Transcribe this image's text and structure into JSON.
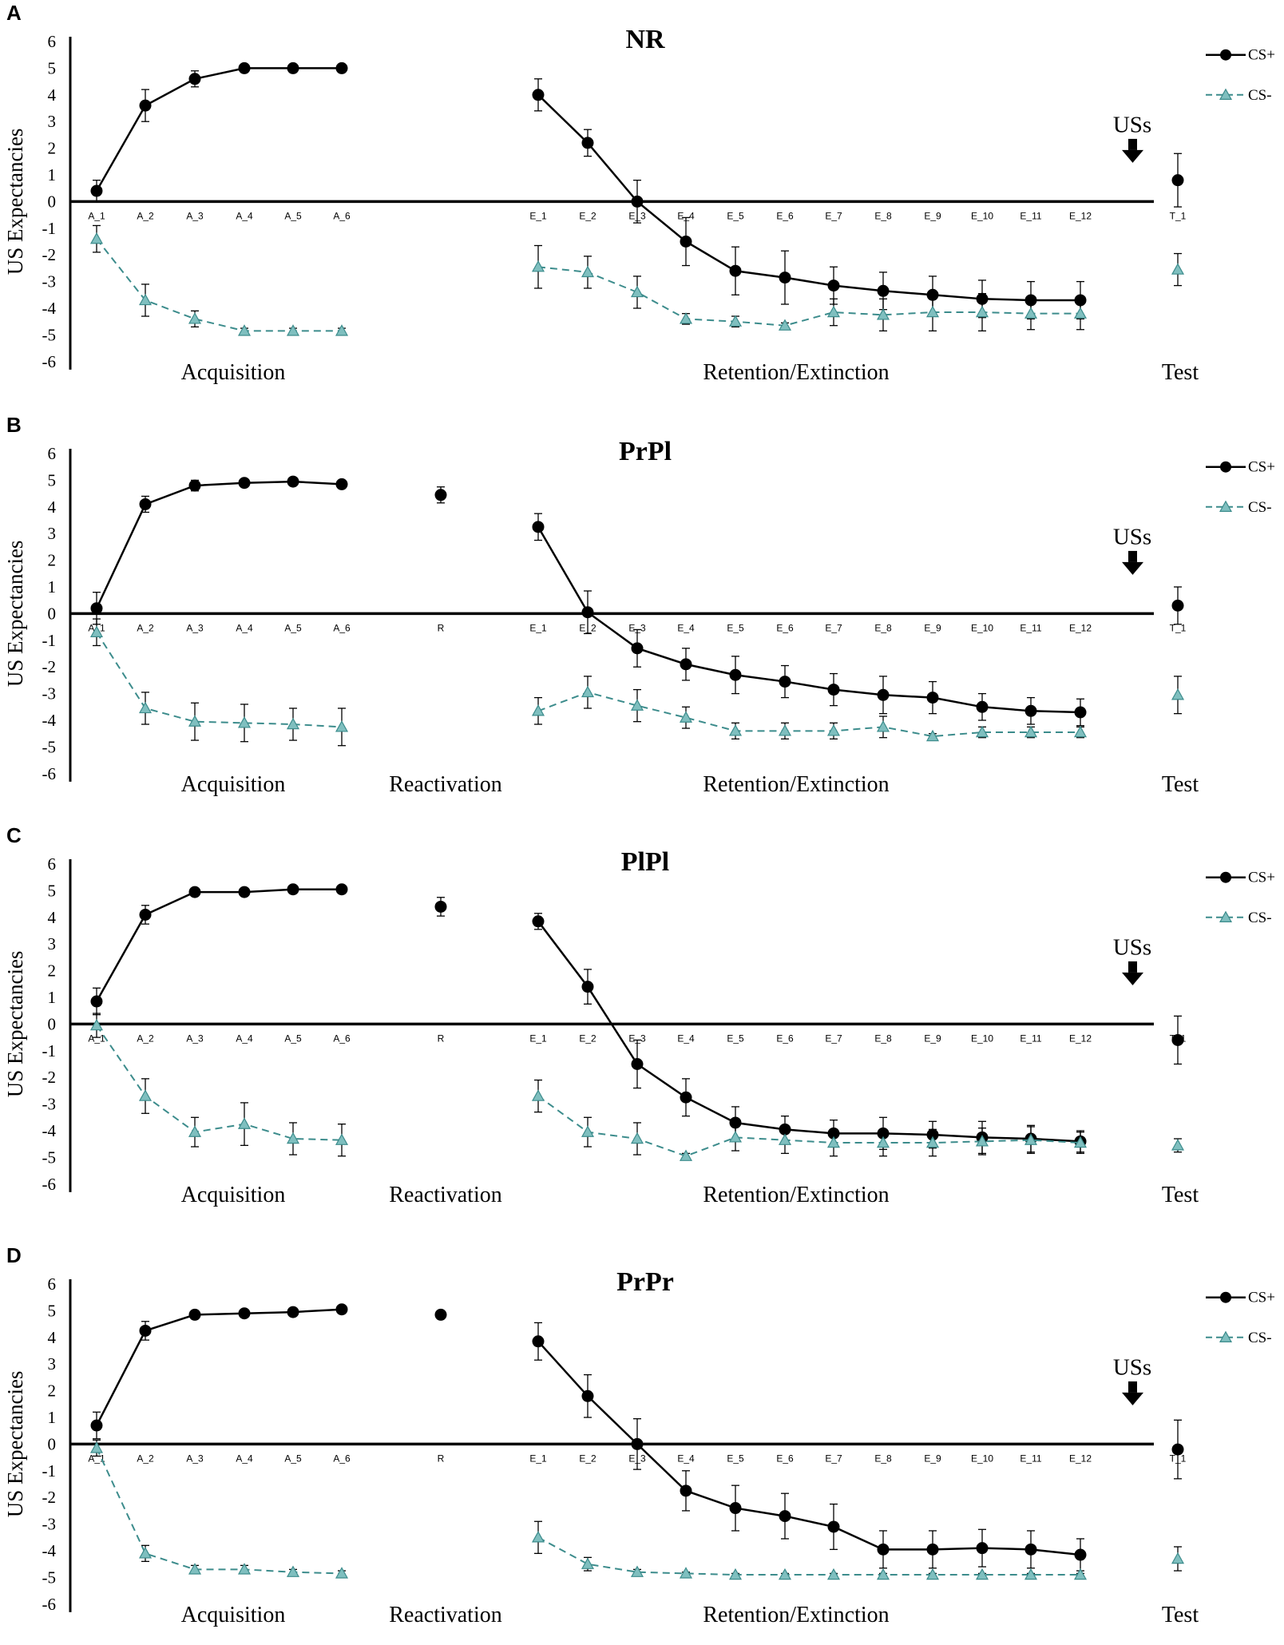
{
  "colors": {
    "csplus": "#000000",
    "csminus_line": "#3c8c8c",
    "csminus_fill": "#7fbfbf",
    "axis": "#000000"
  },
  "figure": {
    "y_axis_label": "US Expectancies",
    "y_ticks": [
      "6",
      "5",
      "4",
      "3",
      "2",
      "1",
      "0",
      "-1",
      "-2",
      "-3",
      "-4",
      "-5",
      "-6"
    ],
    "legend": {
      "csplus": "CS+",
      "csminus": "CS-"
    },
    "annotation": "USs",
    "phase_labels": {
      "acquisition": "Acquisition",
      "reactivation": "Reactivation",
      "retention": "Retention/Extinction",
      "test": "Test"
    }
  },
  "chart_data": [
    {
      "type": "line",
      "panel": "A",
      "title": "NR",
      "ylabel": "US Expectancies",
      "ylim": [
        -6,
        6
      ],
      "has_reactivation": false,
      "categories": [
        "A_1",
        "A_2",
        "A_3",
        "A_4",
        "A_5",
        "A_6",
        "E_1",
        "E_2",
        "E_3",
        "E_4",
        "E_5",
        "E_6",
        "E_7",
        "E_8",
        "E_9",
        "E_10",
        "E_11",
        "E_12",
        "T_1"
      ],
      "series": [
        {
          "name": "CS+",
          "acquisition": [
            0.4,
            3.6,
            4.6,
            5.0,
            5.0,
            5.0
          ],
          "acquisition_err": [
            0.4,
            0.6,
            0.3,
            0,
            0,
            0
          ],
          "extinction": [
            4.0,
            2.2,
            0.0,
            -1.5,
            -2.6,
            -2.85,
            -3.15,
            -3.35,
            -3.5,
            -3.65,
            -3.7,
            -3.7
          ],
          "extinction_err": [
            0.6,
            0.5,
            0.8,
            0.9,
            0.9,
            1.0,
            0.7,
            0.7,
            0.7,
            0.7,
            0.7,
            0.7
          ],
          "test": 0.8,
          "test_err": 1.0
        },
        {
          "name": "CS-",
          "acquisition": [
            -1.4,
            -3.7,
            -4.4,
            -4.85,
            -4.85,
            -4.85
          ],
          "acquisition_err": [
            0.5,
            0.6,
            0.3,
            0.1,
            0.1,
            0.1
          ],
          "extinction": [
            -2.45,
            -2.65,
            -3.4,
            -4.4,
            -4.5,
            -4.65,
            -4.15,
            -4.25,
            -4.15,
            -4.15,
            -4.2,
            -4.2
          ],
          "extinction_err": [
            0.8,
            0.6,
            0.6,
            0.2,
            0.2,
            0.1,
            0.5,
            0.6,
            0.7,
            0.7,
            0.6,
            0.6
          ],
          "test": -2.55,
          "test_err": 0.6
        }
      ]
    },
    {
      "type": "line",
      "panel": "B",
      "title": "PrPl",
      "ylabel": "US Expectancies",
      "ylim": [
        -6,
        6
      ],
      "has_reactivation": true,
      "categories": [
        "A_1",
        "A_2",
        "A_3",
        "A_4",
        "A_5",
        "A_6",
        "R",
        "E_1",
        "E_2",
        "E_3",
        "E_4",
        "E_5",
        "E_6",
        "E_7",
        "E_8",
        "E_9",
        "E_10",
        "E_11",
        "E_12",
        "T_1"
      ],
      "series": [
        {
          "name": "CS+",
          "acquisition": [
            0.2,
            4.1,
            4.8,
            4.9,
            4.95,
            4.85
          ],
          "acquisition_err": [
            0.6,
            0.3,
            0.2,
            0.05,
            0.05,
            0.05
          ],
          "reactivation": 4.45,
          "reactivation_err": 0.3,
          "extinction": [
            3.25,
            0.05,
            -1.3,
            -1.9,
            -2.3,
            -2.55,
            -2.85,
            -3.05,
            -3.15,
            -3.5,
            -3.65,
            -3.7
          ],
          "extinction_err": [
            0.5,
            0.8,
            0.7,
            0.6,
            0.7,
            0.6,
            0.6,
            0.7,
            0.6,
            0.5,
            0.5,
            0.5
          ],
          "test": 0.3,
          "test_err": 0.7
        },
        {
          "name": "CS-",
          "acquisition": [
            -0.7,
            -3.55,
            -4.05,
            -4.1,
            -4.15,
            -4.25
          ],
          "acquisition_err": [
            0.5,
            0.6,
            0.7,
            0.7,
            0.6,
            0.7
          ],
          "extinction": [
            -3.65,
            -2.95,
            -3.45,
            -3.9,
            -4.4,
            -4.4,
            -4.4,
            -4.25,
            -4.6,
            -4.45,
            -4.45,
            -4.45
          ],
          "extinction_err": [
            0.5,
            0.6,
            0.6,
            0.4,
            0.3,
            0.3,
            0.3,
            0.4,
            0.1,
            0.2,
            0.2,
            0.2
          ],
          "test": -3.05,
          "test_err": 0.7
        }
      ]
    },
    {
      "type": "line",
      "panel": "C",
      "title": "PlPl",
      "ylabel": "US Expectancies",
      "ylim": [
        -6,
        6
      ],
      "has_reactivation": true,
      "categories": [
        "A_1",
        "A_2",
        "A_3",
        "A_4",
        "A_5",
        "A_6",
        "R",
        "E_1",
        "E_2",
        "E_3",
        "E_4",
        "E_5",
        "E_6",
        "E_7",
        "E_8",
        "E_9",
        "E_10",
        "E_11",
        "E_12",
        "T_1"
      ],
      "series": [
        {
          "name": "CS+",
          "acquisition": [
            0.85,
            4.1,
            4.95,
            4.95,
            5.05,
            5.05
          ],
          "acquisition_err": [
            0.5,
            0.35,
            0.05,
            0.05,
            0.05,
            0.05
          ],
          "reactivation": 4.4,
          "reactivation_err": 0.35,
          "extinction": [
            3.85,
            1.4,
            -1.5,
            -2.75,
            -3.7,
            -3.95,
            -4.1,
            -4.1,
            -4.15,
            -4.25,
            -4.3,
            -4.4
          ],
          "extinction_err": [
            0.3,
            0.65,
            0.9,
            0.7,
            0.6,
            0.5,
            0.5,
            0.6,
            0.5,
            0.6,
            0.5,
            0.4
          ],
          "test": -0.6,
          "test_err": 0.9
        },
        {
          "name": "CS-",
          "acquisition": [
            -0.05,
            -2.7,
            -4.05,
            -3.75,
            -4.3,
            -4.35
          ],
          "acquisition_err": [
            0.45,
            0.65,
            0.55,
            0.8,
            0.6,
            0.6
          ],
          "extinction": [
            -2.7,
            -4.05,
            -4.3,
            -4.95,
            -4.25,
            -4.35,
            -4.45,
            -4.45,
            -4.45,
            -4.4,
            -4.35,
            -4.45
          ],
          "extinction_err": [
            0.6,
            0.55,
            0.6,
            0.1,
            0.5,
            0.5,
            0.5,
            0.5,
            0.5,
            0.5,
            0.5,
            0.4
          ],
          "test": -4.55,
          "test_err": 0.25
        }
      ]
    },
    {
      "type": "line",
      "panel": "D",
      "title": "PrPr",
      "ylabel": "US Expectancies",
      "ylim": [
        -6,
        6
      ],
      "has_reactivation": true,
      "categories": [
        "A_1",
        "A_2",
        "A_3",
        "A_4",
        "A_5",
        "A_6",
        "R",
        "E_1",
        "E_2",
        "E_3",
        "E_4",
        "E_5",
        "E_6",
        "E_7",
        "E_8",
        "E_9",
        "E_10",
        "E_11",
        "E_12",
        "T_1"
      ],
      "series": [
        {
          "name": "CS+",
          "acquisition": [
            0.7,
            4.25,
            4.85,
            4.9,
            4.95,
            5.05
          ],
          "acquisition_err": [
            0.5,
            0.35,
            0.15,
            0.05,
            0.05,
            0.05
          ],
          "reactivation": 4.85,
          "reactivation_err": 0.1,
          "extinction": [
            3.85,
            1.8,
            0.0,
            -1.75,
            -2.4,
            -2.7,
            -3.1,
            -3.95,
            -3.95,
            -3.9,
            -3.95,
            -4.15
          ],
          "extinction_err": [
            0.7,
            0.8,
            0.95,
            0.75,
            0.85,
            0.85,
            0.85,
            0.7,
            0.7,
            0.7,
            0.7,
            0.6
          ],
          "test": -0.2,
          "test_err": 1.1
        },
        {
          "name": "CS-",
          "acquisition": [
            -0.15,
            -4.1,
            -4.7,
            -4.7,
            -4.8,
            -4.85
          ],
          "acquisition_err": [
            0.3,
            0.3,
            0.15,
            0.15,
            0.1,
            0.1
          ],
          "extinction": [
            -3.5,
            -4.5,
            -4.8,
            -4.85,
            -4.9,
            -4.9,
            -4.9,
            -4.9,
            -4.9,
            -4.9,
            -4.9,
            -4.9
          ],
          "extinction_err": [
            0.6,
            0.25,
            0.1,
            0.05,
            0.05,
            0.05,
            0.05,
            0.05,
            0.05,
            0.05,
            0.05,
            0.05
          ],
          "test": -4.3,
          "test_err": 0.45
        }
      ]
    }
  ]
}
